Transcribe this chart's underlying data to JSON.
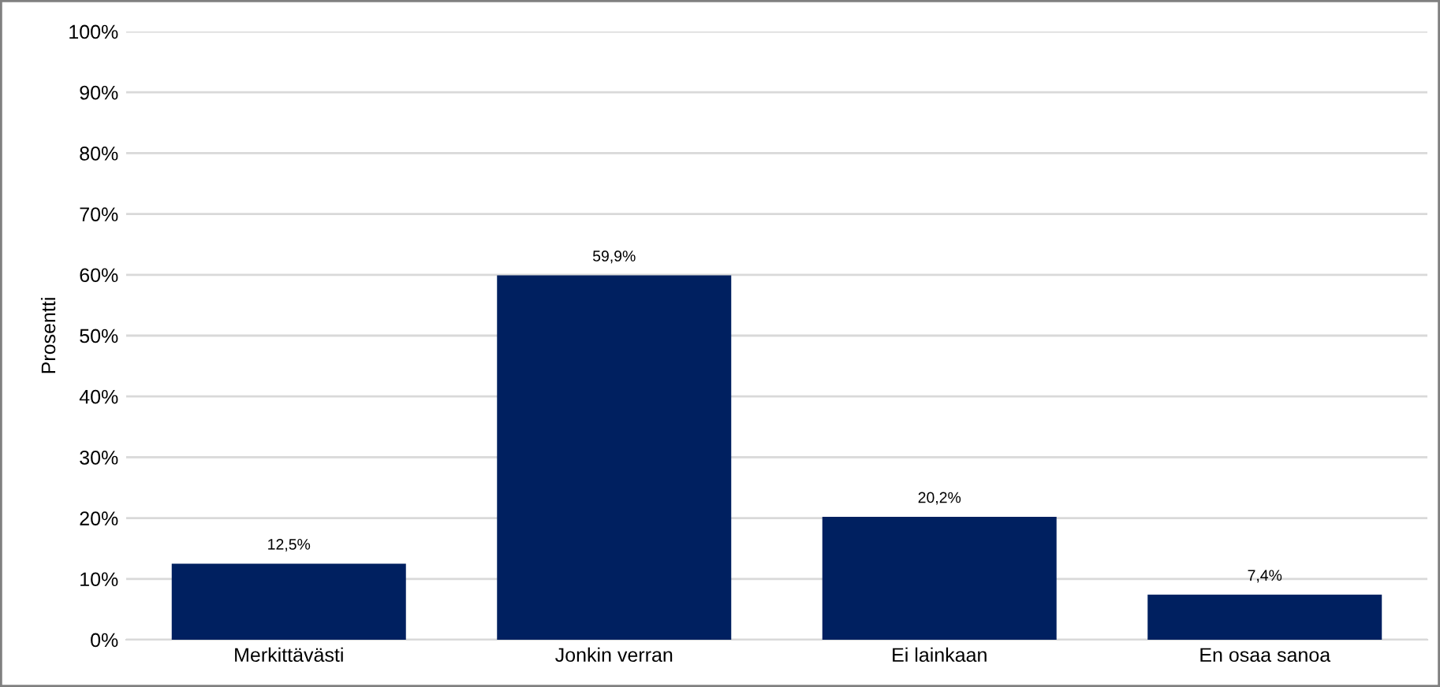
{
  "chart_data": {
    "type": "bar",
    "ylabel": "Prosentti",
    "categories": [
      "Merkittävästi",
      "Jonkin verran",
      "Ei lainkaan",
      "En osaa sanoa"
    ],
    "values": [
      12.5,
      59.9,
      20.2,
      7.4
    ],
    "value_labels": [
      "12,5%",
      "59,9%",
      "20,2%",
      "7,4%"
    ],
    "color": "#002060",
    "ylim": [
      0,
      100
    ],
    "yticks": [
      {
        "value": 0,
        "label": "0%"
      },
      {
        "value": 10,
        "label": "10%"
      },
      {
        "value": 20,
        "label": "20%"
      },
      {
        "value": 30,
        "label": "30%"
      },
      {
        "value": 40,
        "label": "40%"
      },
      {
        "value": 50,
        "label": "50%"
      },
      {
        "value": 60,
        "label": "60%"
      },
      {
        "value": 70,
        "label": "70%"
      },
      {
        "value": 80,
        "label": "80%"
      },
      {
        "value": 90,
        "label": "90%"
      },
      {
        "value": 100,
        "label": "100%"
      }
    ],
    "grid": "y",
    "legend": false
  }
}
